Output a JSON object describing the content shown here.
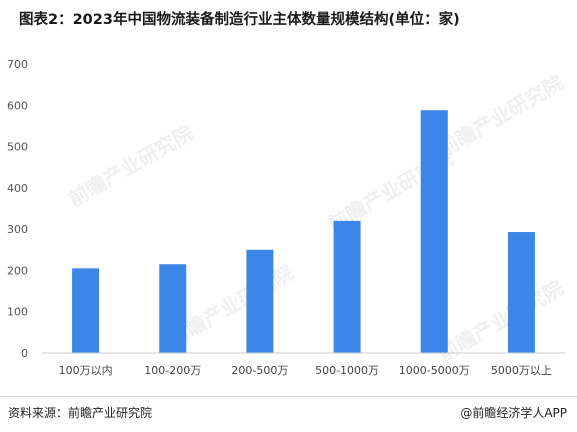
{
  "title": "图表2：2023年中国物流装备制造行业主体数量规模结构(单位：家)",
  "footer": {
    "source": "资料来源：前瞻产业研究院",
    "credit": "@前瞻经济学人APP"
  },
  "watermark": "前瞻产业研究院",
  "colors": {
    "bar": "#3b86e6",
    "axis": "#cccccc",
    "grid": "#e6e6e6"
  },
  "chart_data": {
    "type": "bar",
    "categories": [
      "100万以内",
      "100-200万",
      "200-500万",
      "500-1000万",
      "1000-5000万",
      "5000万以上"
    ],
    "values": [
      205,
      215,
      250,
      320,
      588,
      293
    ],
    "ylim": [
      0,
      700
    ],
    "yticks": [
      "0",
      "100",
      "200",
      "300",
      "400",
      "500",
      "600",
      "700"
    ],
    "grid": false,
    "legend": "none"
  }
}
